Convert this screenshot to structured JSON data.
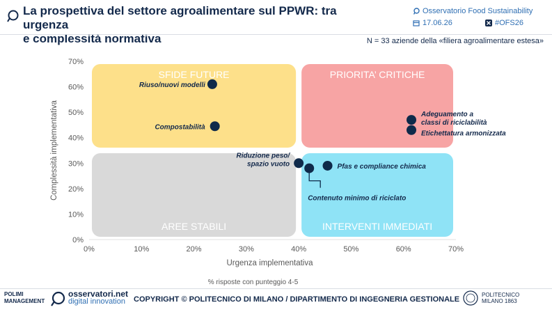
{
  "header": {
    "title_line1": "La prospettiva del settore agroalimentare sul PPWR: tra urgenza",
    "title_line2": "e complessità normativa",
    "observatory": "Osservatorio Food Sustainability",
    "date": "17.06.26",
    "hashtag": "#OFS26"
  },
  "sample_note": "N = 33 aziende della «filiera agroalimentare estesa»",
  "chart_data": {
    "type": "scatter",
    "xlabel": "Urgenza implementativa",
    "ylabel": "Complessità implementativa",
    "note": "% risposte con punteggio 4-5",
    "xlim": [
      0,
      70
    ],
    "ylim": [
      0,
      70
    ],
    "x_ticks": [
      "0%",
      "10%",
      "20%",
      "30%",
      "40%",
      "50%",
      "60%",
      "70%"
    ],
    "y_ticks": [
      "0%",
      "10%",
      "20%",
      "30%",
      "40%",
      "50%",
      "60%",
      "70%"
    ],
    "quadrants": [
      {
        "label": "SFIDE FUTURE",
        "x_range": [
          0,
          40
        ],
        "y_range": [
          35,
          70
        ],
        "color": "#fde08a"
      },
      {
        "label": "PRIORITA’ CRITICHE",
        "x_range": [
          40,
          70
        ],
        "y_range": [
          35,
          70
        ],
        "color": "#f7a4a4"
      },
      {
        "label": "AREE STABILI",
        "x_range": [
          0,
          40
        ],
        "y_range": [
          0,
          35
        ],
        "color": "#d9d9d9"
      },
      {
        "label": "INTERVENTI IMMEDIATI",
        "x_range": [
          40,
          70
        ],
        "y_range": [
          0,
          35
        ],
        "color": "#8fe3f6"
      }
    ],
    "points": [
      {
        "label_lines": [
          "Riuso/nuovi modelli"
        ],
        "x": 23.5,
        "y": 61
      },
      {
        "label_lines": [
          "Compostabilità"
        ],
        "x": 24,
        "y": 44.5
      },
      {
        "label_lines": [
          "Adeguamento a",
          "classi di riciclabilità"
        ],
        "x": 61.5,
        "y": 47
      },
      {
        "label_lines": [
          "Etichettatura armonizzata"
        ],
        "x": 61.5,
        "y": 43
      },
      {
        "label_lines": [
          "Riduzione peso/",
          "spazio vuoto"
        ],
        "x": 40,
        "y": 30
      },
      {
        "label_lines": [
          "Pfas e compliance chimica"
        ],
        "x": 45.5,
        "y": 29
      },
      {
        "label_lines": [
          "Contenuto minimo di riciclato"
        ],
        "x": 42,
        "y": 28
      }
    ],
    "grid": false,
    "colors": {
      "point": "#0f2a4a",
      "axis_text": "#595959",
      "label": "#13294b"
    }
  },
  "footer": {
    "polimi_school_line1": "POLIMI",
    "polimi_school_line2": "MANAGEMENT",
    "osservatori_name": "osservatori.net",
    "osservatori_sub": "digital innovation",
    "copyright": "COPYRIGHT © POLITECNICO DI MILANO / DIPARTIMENTO DI INGEGNERIA GESTIONALE",
    "polimi_line1": "POLITECNICO",
    "polimi_line2": "MILANO 1863"
  }
}
